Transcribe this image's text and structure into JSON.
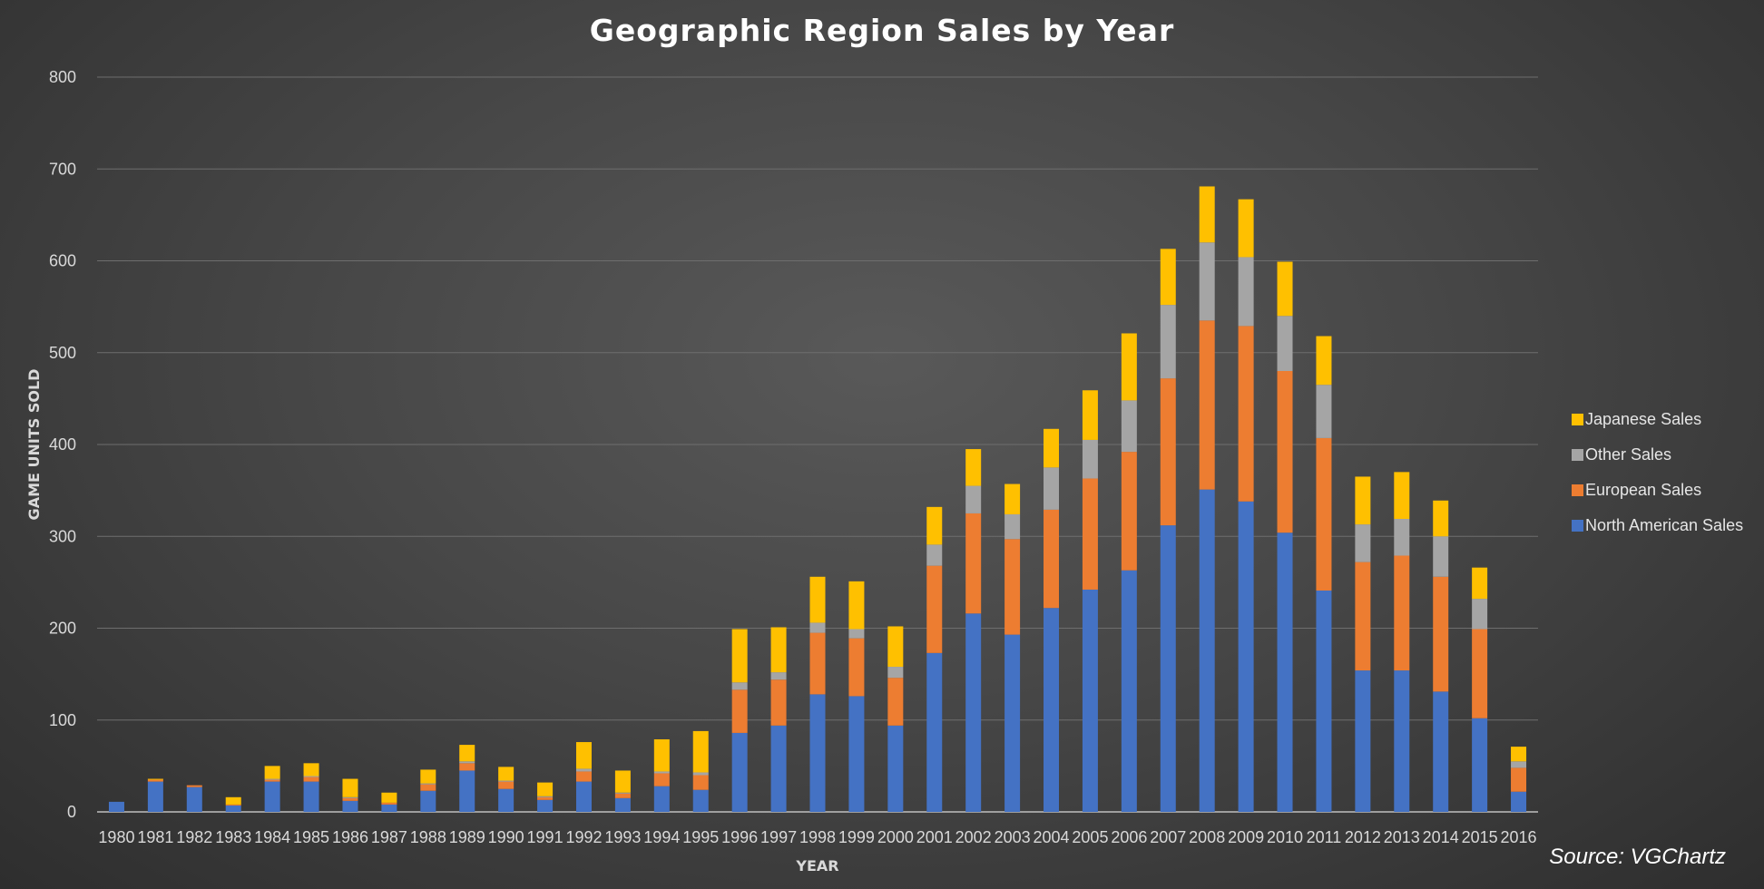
{
  "chart_data": {
    "type": "bar",
    "stacked": true,
    "title": "Geographic Region Sales by Year",
    "xlabel": "YEAR",
    "ylabel": "GAME UNITS SOLD",
    "ylim": [
      0,
      800
    ],
    "yticks": [
      "0",
      "100",
      "200",
      "300",
      "400",
      "500",
      "600",
      "700",
      "800"
    ],
    "grid": true,
    "legend_position": "right",
    "categories": [
      "1980",
      "1981",
      "1982",
      "1983",
      "1984",
      "1985",
      "1986",
      "1987",
      "1988",
      "1989",
      "1990",
      "1991",
      "1992",
      "1993",
      "1994",
      "1995",
      "1996",
      "1997",
      "1998",
      "1999",
      "2000",
      "2001",
      "2002",
      "2003",
      "2004",
      "2005",
      "2006",
      "2007",
      "2008",
      "2009",
      "2010",
      "2011",
      "2012",
      "2013",
      "2014",
      "2015",
      "2016"
    ],
    "series": [
      {
        "name": "North American Sales",
        "color": "#4472c4",
        "values": [
          11,
          33,
          27,
          7,
          33,
          33,
          12,
          8,
          23,
          45,
          25,
          13,
          33,
          15,
          28,
          24,
          86,
          94,
          128,
          126,
          94,
          173,
          216,
          193,
          222,
          242,
          263,
          312,
          351,
          338,
          304,
          241,
          154,
          154,
          131,
          102,
          22
        ]
      },
      {
        "name": "European Sales",
        "color": "#ed7d31",
        "values": [
          0,
          2,
          2,
          1,
          2,
          5,
          3,
          2,
          7,
          8,
          8,
          3,
          11,
          5,
          14,
          16,
          47,
          50,
          67,
          63,
          52,
          95,
          109,
          104,
          107,
          121,
          129,
          160,
          184,
          191,
          176,
          166,
          118,
          125,
          125,
          97,
          26
        ]
      },
      {
        "name": "Other Sales",
        "color": "#a5a5a5",
        "values": [
          0,
          0,
          0,
          0,
          1,
          1,
          1,
          0,
          1,
          2,
          1,
          1,
          3,
          1,
          2,
          3,
          8,
          8,
          11,
          10,
          12,
          23,
          30,
          27,
          46,
          42,
          56,
          80,
          85,
          75,
          60,
          58,
          41,
          40,
          44,
          33,
          7
        ]
      },
      {
        "name": "Japanese Sales",
        "color": "#ffc000",
        "values": [
          0,
          1,
          0,
          8,
          14,
          14,
          20,
          11,
          15,
          18,
          15,
          15,
          29,
          24,
          35,
          45,
          58,
          49,
          50,
          52,
          44,
          41,
          40,
          33,
          42,
          54,
          73,
          61,
          61,
          63,
          59,
          53,
          52,
          51,
          39,
          34,
          16
        ]
      }
    ],
    "legend_order": [
      "Japanese Sales",
      "Other Sales",
      "European Sales",
      "North American Sales"
    ],
    "source_note": "Source: VGChartz"
  }
}
